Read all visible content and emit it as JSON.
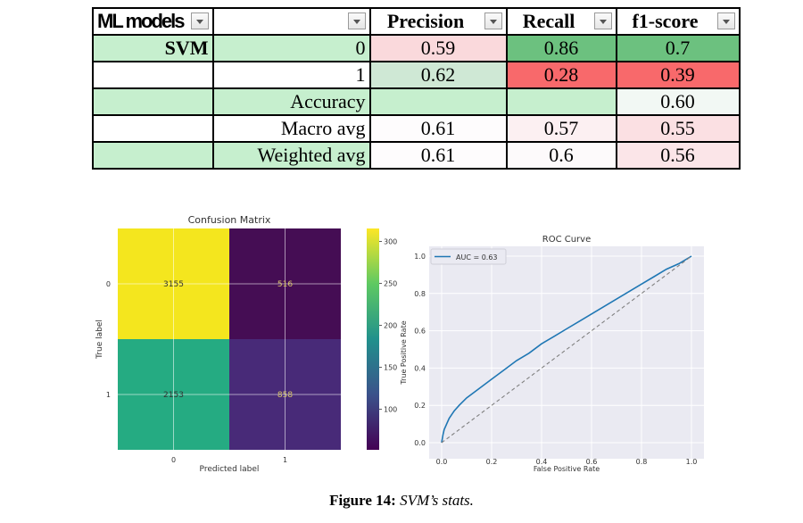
{
  "table": {
    "headers": [
      {
        "label": "ML models",
        "filter": true
      },
      {
        "label": "",
        "filter": true
      },
      {
        "label": "Precision",
        "filter": true
      },
      {
        "label": "Recall",
        "filter": true
      },
      {
        "label": "f1-score",
        "filter": true
      }
    ],
    "rows": [
      {
        "model": "SVM",
        "class": "0",
        "precision": "0.59",
        "recall": "0.86",
        "f1": "0.7",
        "colors": {
          "model": "#c6efce",
          "class": "#c6efce",
          "precision": "#fad9dc",
          "recall": "#6cc17f",
          "f1": "#6cc17f"
        }
      },
      {
        "model": "",
        "class": "1",
        "precision": "0.62",
        "recall": "0.28",
        "f1": "0.39",
        "colors": {
          "model": "#ffffff",
          "class": "#ffffff",
          "precision": "#cfe8d5",
          "recall": "#f8696b",
          "f1": "#f8696b"
        }
      },
      {
        "model": "",
        "class": "Accuracy",
        "precision": "",
        "recall": "",
        "f1": "0.60",
        "colors": {
          "model": "#c6efce",
          "class": "#c6efce",
          "precision": "#c6efce",
          "recall": "#c6efce",
          "f1": "#f2f8f4"
        }
      },
      {
        "model": "",
        "class": "Macro avg",
        "precision": "0.61",
        "recall": "0.57",
        "f1": "0.55",
        "colors": {
          "model": "#ffffff",
          "class": "#ffffff",
          "precision": "#fefcfd",
          "recall": "#fcf0f2",
          "f1": "#fbe0e3"
        }
      },
      {
        "model": "",
        "class": "Weighted avg",
        "precision": "0.61",
        "recall": "0.6",
        "f1": "0.56",
        "colors": {
          "model": "#c6efce",
          "class": "#c6efce",
          "precision": "#fefcfd",
          "recall": "#fdfafb",
          "f1": "#fbe5e8"
        }
      }
    ]
  },
  "chart_data": [
    {
      "type": "heatmap",
      "title": "Confusion Matrix",
      "xlabel": "Predicted label",
      "ylabel": "True label",
      "x_ticks": [
        "0",
        "1"
      ],
      "y_ticks": [
        "0",
        "1"
      ],
      "values": [
        [
          3155,
          516
        ],
        [
          2153,
          858
        ]
      ],
      "cell_colors": [
        [
          "#f4e61e",
          "#450d54"
        ],
        [
          "#25ab82",
          "#482a78"
        ]
      ],
      "annotation_colors": [
        [
          "#333333",
          "#d9c86a"
        ],
        [
          "#333333",
          "#d9c86a"
        ]
      ],
      "colorbar": {
        "ticks": [
          1000,
          1500,
          2000,
          2500,
          3000
        ],
        "range": [
          516,
          3155
        ],
        "colormap": "viridis"
      },
      "grid": true
    },
    {
      "type": "line",
      "title": "ROC Curve",
      "xlabel": "False Positive Rate",
      "ylabel": "True Positive Rate",
      "xlim": [
        0,
        1
      ],
      "ylim": [
        0,
        1
      ],
      "x_ticks": [
        "0.0",
        "0.2",
        "0.4",
        "0.6",
        "0.8",
        "1.0"
      ],
      "y_ticks": [
        "0.0",
        "0.2",
        "0.4",
        "0.6",
        "0.8",
        "1.0"
      ],
      "legend": "top-left",
      "grid": true,
      "series": [
        {
          "name": "AUC = 0.63",
          "color": "#1f77b4",
          "x": [
            0.0,
            0.005,
            0.01,
            0.02,
            0.03,
            0.05,
            0.07,
            0.1,
            0.15,
            0.2,
            0.25,
            0.3,
            0.35,
            0.4,
            0.45,
            0.5,
            0.55,
            0.6,
            0.65,
            0.7,
            0.75,
            0.8,
            0.85,
            0.9,
            0.95,
            1.0
          ],
          "y": [
            0.0,
            0.04,
            0.07,
            0.1,
            0.13,
            0.17,
            0.2,
            0.24,
            0.29,
            0.34,
            0.39,
            0.44,
            0.48,
            0.53,
            0.57,
            0.61,
            0.65,
            0.69,
            0.73,
            0.77,
            0.81,
            0.85,
            0.89,
            0.93,
            0.96,
            1.0
          ]
        },
        {
          "name": "",
          "color": "#808080",
          "dashed": true,
          "x": [
            0,
            1
          ],
          "y": [
            0,
            1
          ]
        }
      ]
    }
  ],
  "caption": {
    "label": "Figure 14:",
    "text": "SVM’s stats."
  }
}
